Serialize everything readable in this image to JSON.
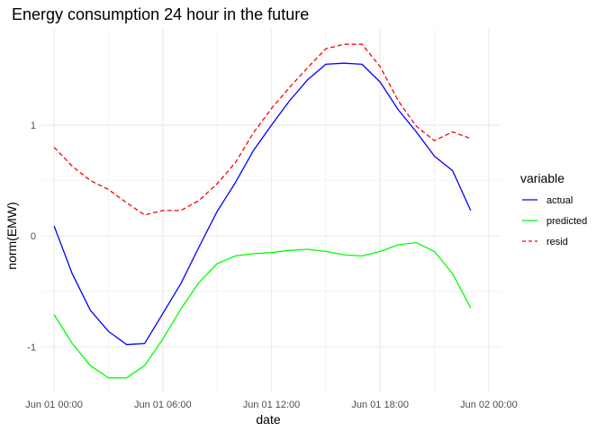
{
  "chart_data": {
    "type": "line",
    "title": "Energy consumption 24 hour in the future",
    "xlabel": "date",
    "ylabel": "norm(EMW)",
    "x_hours": [
      0,
      1,
      2,
      3,
      4,
      5,
      6,
      7,
      8,
      9,
      10,
      11,
      12,
      13,
      14,
      15,
      16,
      17,
      18,
      19,
      20,
      21,
      22,
      23
    ],
    "x_ticks": [
      {
        "label": "Jun 01 00:00",
        "hour": 0
      },
      {
        "label": "Jun 01 06:00",
        "hour": 6
      },
      {
        "label": "Jun 01 12:00",
        "hour": 12
      },
      {
        "label": "Jun 01 18:00",
        "hour": 18
      },
      {
        "label": "Jun 02 00:00",
        "hour": 24
      }
    ],
    "y_ticks": [
      {
        "label": "1",
        "value": 1
      },
      {
        "label": "0",
        "value": 0
      },
      {
        "label": "-1",
        "value": -1
      }
    ],
    "xlim": [
      -0.7,
      24.7
    ],
    "ylim": [
      -1.42,
      1.87
    ],
    "grid": true,
    "legend": {
      "title": "variable",
      "position": "right"
    },
    "series": [
      {
        "name": "actual",
        "color": "#0000ff",
        "dash": "solid",
        "values": [
          0.09,
          -0.34,
          -0.67,
          -0.86,
          -0.98,
          -0.97,
          -0.7,
          -0.43,
          -0.1,
          0.22,
          0.48,
          0.77,
          1.0,
          1.22,
          1.41,
          1.55,
          1.56,
          1.55,
          1.39,
          1.14,
          0.94,
          0.72,
          0.59,
          0.23
        ]
      },
      {
        "name": "predicted",
        "color": "#00ff00",
        "dash": "solid",
        "values": [
          -0.71,
          -0.97,
          -1.17,
          -1.28,
          -1.28,
          -1.17,
          -0.93,
          -0.66,
          -0.42,
          -0.25,
          -0.18,
          -0.16,
          -0.15,
          -0.13,
          -0.12,
          -0.14,
          -0.17,
          -0.18,
          -0.14,
          -0.08,
          -0.06,
          -0.14,
          -0.34,
          -0.65
        ]
      },
      {
        "name": "resid",
        "color": "#ff0000",
        "dash": "dashed",
        "values": [
          0.8,
          0.63,
          0.5,
          0.42,
          0.3,
          0.19,
          0.23,
          0.23,
          0.32,
          0.47,
          0.66,
          0.93,
          1.15,
          1.34,
          1.52,
          1.69,
          1.73,
          1.73,
          1.53,
          1.22,
          0.99,
          0.86,
          0.94,
          0.88
        ]
      }
    ]
  }
}
